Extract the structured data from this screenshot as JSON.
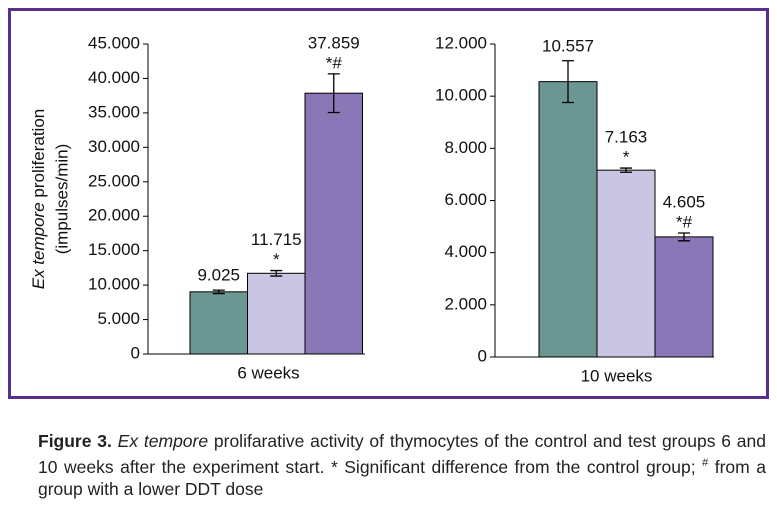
{
  "chart_data": [
    {
      "type": "bar",
      "categories": [
        "6 weeks"
      ],
      "ylabel": {
        "italic": "Ex tempore",
        "rest": "proliferation",
        "unit": "(impulses/min)"
      },
      "ylim": [
        0,
        45000
      ],
      "yticks": [
        {
          "value": 0,
          "label": "0"
        },
        {
          "value": 5000,
          "label": "5.000"
        },
        {
          "value": 10000,
          "label": "10.000"
        },
        {
          "value": 15000,
          "label": "15.000"
        },
        {
          "value": 20000,
          "label": "20.000"
        },
        {
          "value": 25000,
          "label": "25.000"
        },
        {
          "value": 30000,
          "label": "30.000"
        },
        {
          "value": 35000,
          "label": "35.000"
        },
        {
          "value": 40000,
          "label": "40.000"
        },
        {
          "value": 45000,
          "label": "45.000"
        }
      ],
      "series": [
        {
          "color": "#6b9691",
          "values": [
            9025
          ],
          "value_labels": [
            "9.025"
          ],
          "errors": [
            250
          ],
          "markers": [
            null
          ]
        },
        {
          "color": "#c9c5e3",
          "values": [
            11715
          ],
          "value_labels": [
            "11.715"
          ],
          "errors": [
            400
          ],
          "markers": [
            "*"
          ]
        },
        {
          "color": "#8a77b8",
          "values": [
            37859
          ],
          "value_labels": [
            "37.859"
          ],
          "errors": [
            2800
          ],
          "markers": [
            "*#"
          ]
        }
      ]
    },
    {
      "type": "bar",
      "categories": [
        "10 weeks"
      ],
      "ylim": [
        0,
        12000
      ],
      "yticks": [
        {
          "value": 0,
          "label": "0"
        },
        {
          "value": 2000,
          "label": "2.000"
        },
        {
          "value": 4000,
          "label": "4.000"
        },
        {
          "value": 6000,
          "label": "6.000"
        },
        {
          "value": 8000,
          "label": "8.000"
        },
        {
          "value": 10000,
          "label": "10.000"
        },
        {
          "value": 12000,
          "label": "12.000"
        }
      ],
      "series": [
        {
          "color": "#6b9691",
          "values": [
            10557
          ],
          "value_labels": [
            "10.557"
          ],
          "errors": [
            800
          ],
          "markers": [
            null
          ]
        },
        {
          "color": "#c9c5e3",
          "values": [
            7163
          ],
          "value_labels": [
            "7.163"
          ],
          "errors": [
            80
          ],
          "markers": [
            "*"
          ]
        },
        {
          "color": "#8a77b8",
          "values": [
            4605
          ],
          "value_labels": [
            "4.605"
          ],
          "errors": [
            150
          ],
          "markers": [
            "*#"
          ]
        }
      ]
    }
  ],
  "caption": [
    "Figure 3.",
    "Ex tempore",
    "prolifarative activity of thymocytes of the control and test groups 6 and 10 weeks after the experiment start. * Significant difference from the control group;",
    "#",
    "from a group with a lower DDT dose"
  ]
}
